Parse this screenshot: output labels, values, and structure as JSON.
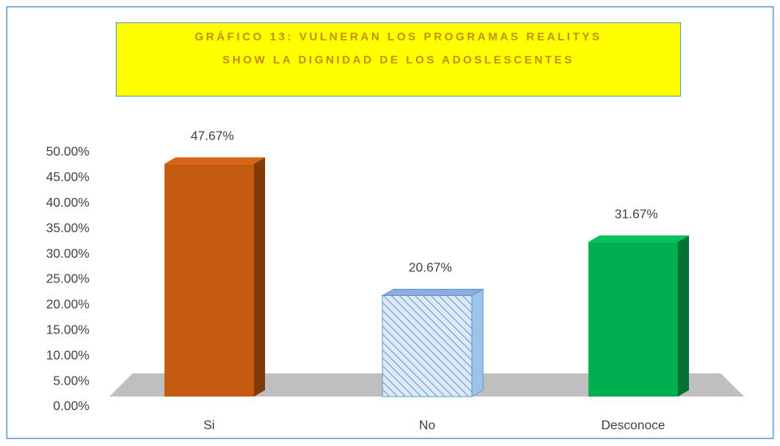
{
  "chart_data": {
    "type": "bar3d",
    "title": [
      "GRÁFICO 13: VULNERAN LOS PROGRAMAS REALITYS",
      "SHOW LA DIGNIDAD DE LOS ADOSLESCENTES"
    ],
    "categories": [
      "Si",
      "No",
      "Desconoce"
    ],
    "values": [
      47.67,
      20.67,
      31.67
    ],
    "value_labels": [
      "47.67%",
      "20.67%",
      "31.67%"
    ],
    "colors": [
      "#c55a11",
      "#bdd7ee",
      "#00b050"
    ],
    "ylim": [
      0,
      50
    ],
    "yticks": [
      {
        "value": 0,
        "label": "0.00%"
      },
      {
        "value": 5,
        "label": "5.00%"
      },
      {
        "value": 10,
        "label": "10.00%"
      },
      {
        "value": 15,
        "label": "15.00%"
      },
      {
        "value": 20,
        "label": "20.00%"
      },
      {
        "value": 25,
        "label": "25.00%"
      },
      {
        "value": 30,
        "label": "30.00%"
      },
      {
        "value": 35,
        "label": "35.00%"
      },
      {
        "value": 40,
        "label": "40.00%"
      },
      {
        "value": 45,
        "label": "45.00%"
      },
      {
        "value": 50,
        "label": "50.00%"
      }
    ],
    "grid": false
  }
}
